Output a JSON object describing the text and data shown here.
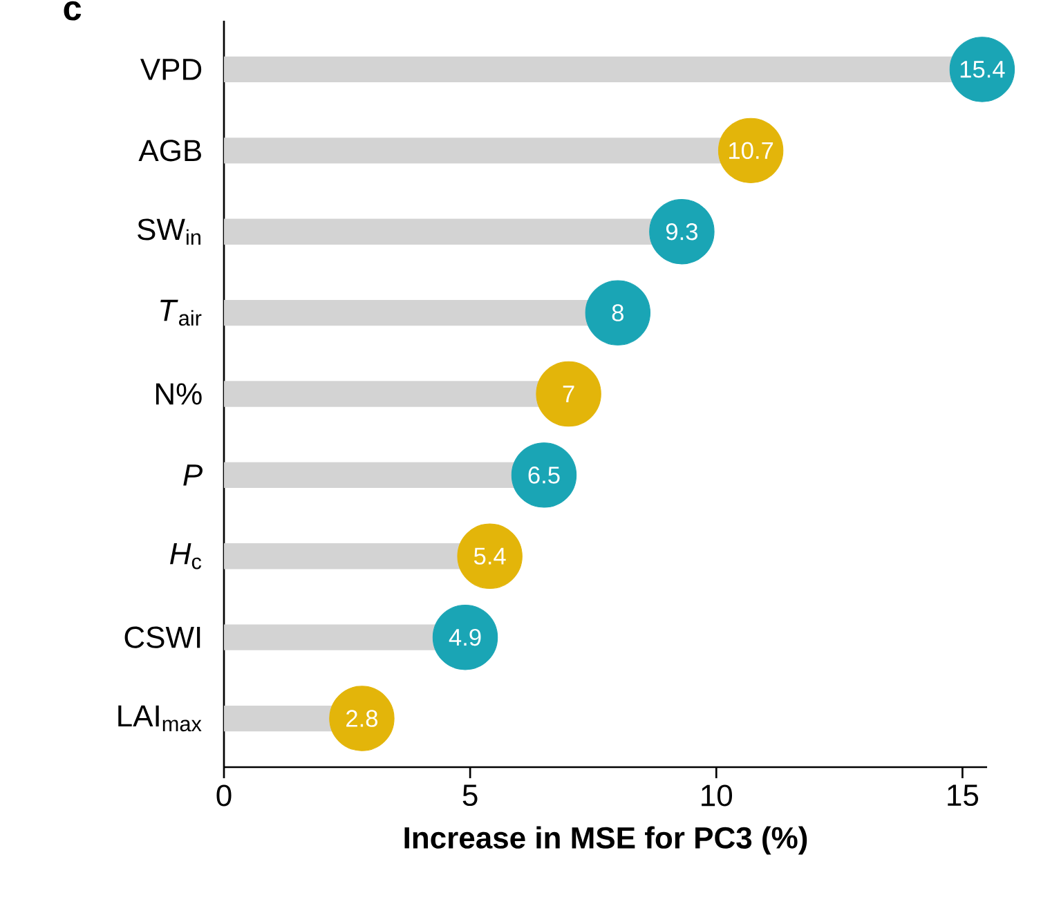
{
  "chart_data": {
    "type": "lollipop",
    "title": "c",
    "orientation": "horizontal",
    "xlabel": "Increase in MSE for PC3 (%)",
    "categories": [
      "VPD",
      "AGB",
      "SW$_{in}$",
      "*T*$_{air}$",
      "N%",
      "*P*",
      "*H*$_{c}$",
      "CSWI",
      "LAI$_{max}$"
    ],
    "values": [
      15.4,
      10.7,
      9.3,
      8,
      7,
      6.5,
      5.4,
      4.9,
      2.8
    ],
    "colors": [
      "#1aa5b5",
      "#e3b50a",
      "#1aa5b5",
      "#1aa5b5",
      "#e3b50a",
      "#1aa5b5",
      "#e3b50a",
      "#1aa5b5",
      "#e3b50a"
    ],
    "data_labels": true,
    "xlim": [
      0,
      15.5
    ],
    "xticks": [
      0,
      5,
      10,
      15
    ]
  }
}
